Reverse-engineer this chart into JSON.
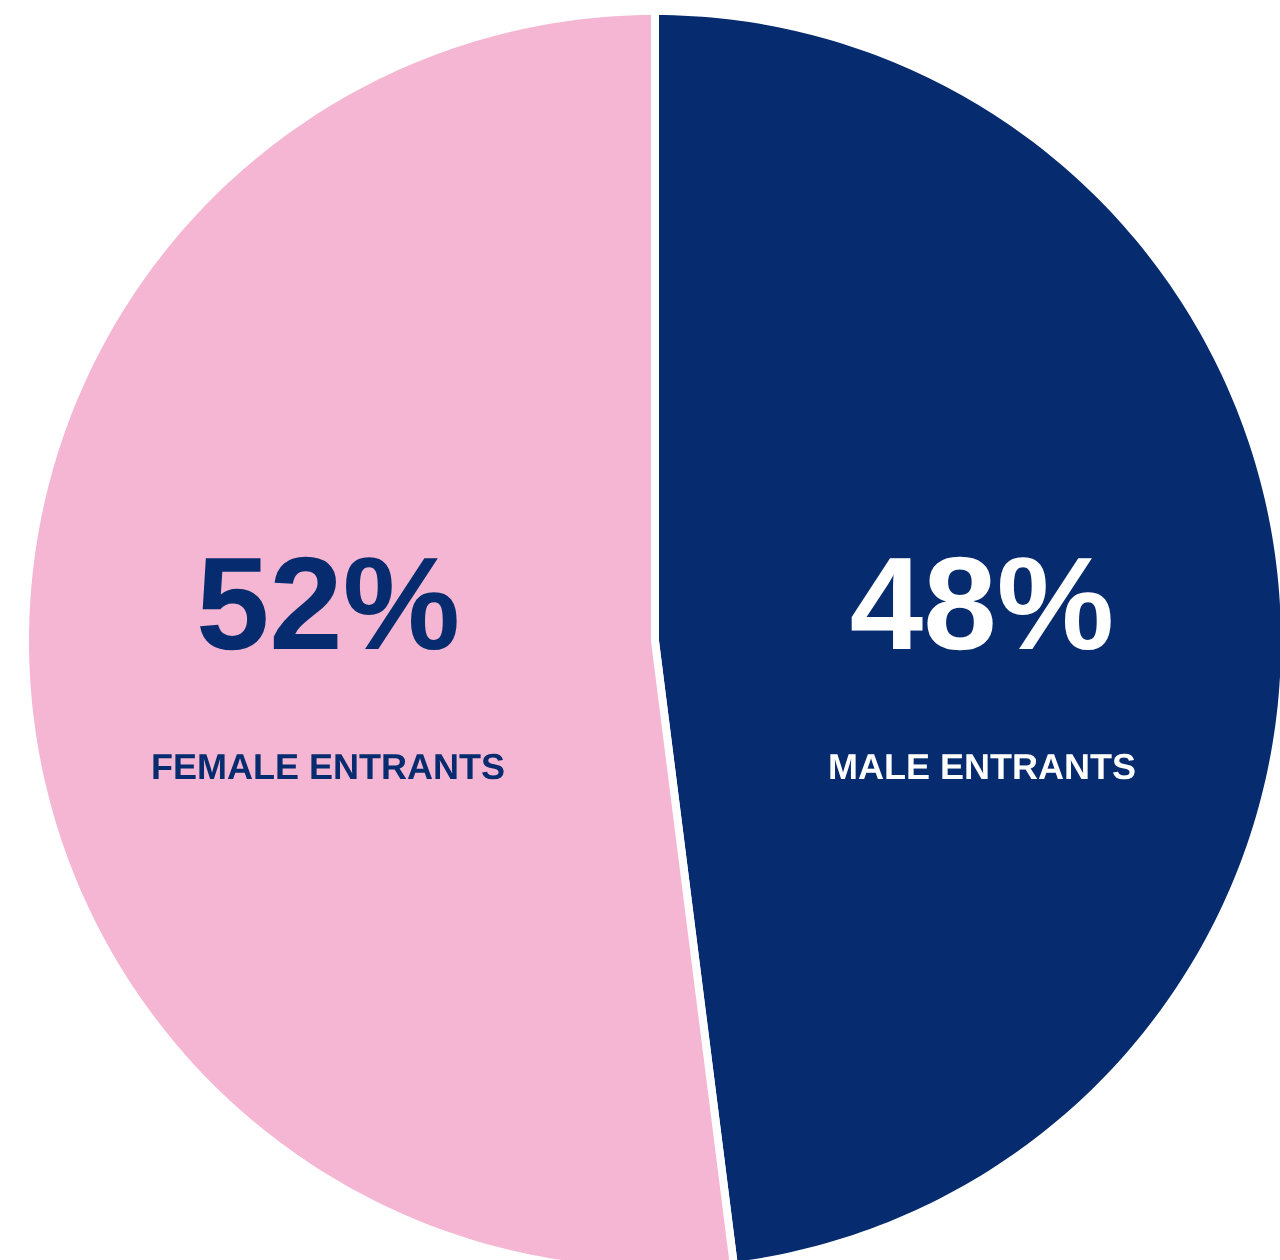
{
  "chart_data": {
    "type": "pie",
    "categories": [
      "MALE ENTRANTS",
      "FEMALE ENTRANTS"
    ],
    "values": [
      48,
      52
    ],
    "colors": [
      "#062b6e",
      "#f4b6d2"
    ],
    "value_labels": [
      "48%",
      "52%"
    ]
  }
}
